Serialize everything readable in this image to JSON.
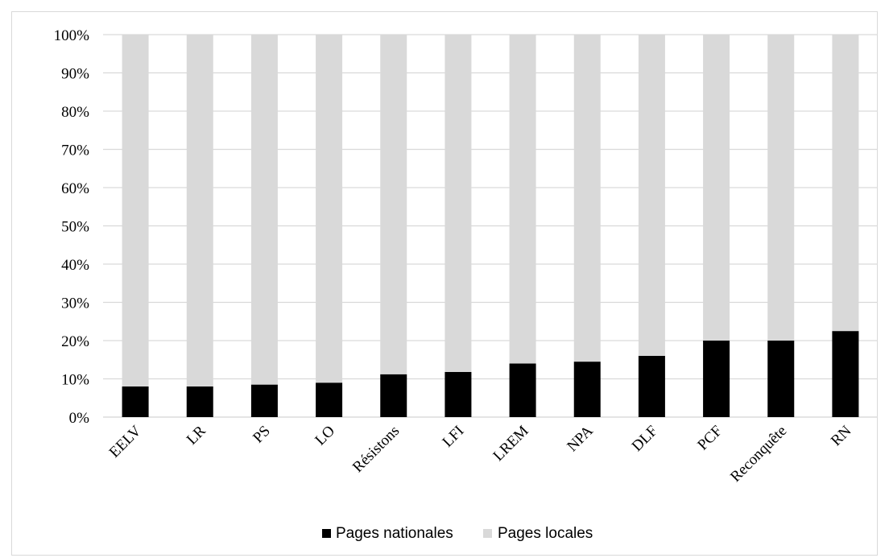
{
  "chart_data": {
    "type": "bar",
    "stacked": true,
    "categories": [
      "EELV",
      "LR",
      "PS",
      "LO",
      "Résistons",
      "LFI",
      "LREM",
      "NPA",
      "DLF",
      "PCF",
      "Reconquête",
      "RN"
    ],
    "series": [
      {
        "name": "Pages nationales",
        "color": "#000000",
        "values": [
          8,
          8,
          8.5,
          9,
          11.2,
          11.8,
          14,
          14.5,
          16,
          20,
          20,
          22.5
        ]
      },
      {
        "name": "Pages locales",
        "color": "#d9d9d9",
        "values": [
          92,
          92,
          91.5,
          91,
          88.8,
          88.2,
          86,
          85.5,
          84,
          80,
          80,
          77.5
        ]
      }
    ],
    "ylim": [
      0,
      100
    ],
    "yticks": [
      "0%",
      "10%",
      "20%",
      "30%",
      "40%",
      "50%",
      "60%",
      "70%",
      "80%",
      "90%",
      "100%"
    ],
    "grid": true,
    "legend_position": "bottom"
  }
}
